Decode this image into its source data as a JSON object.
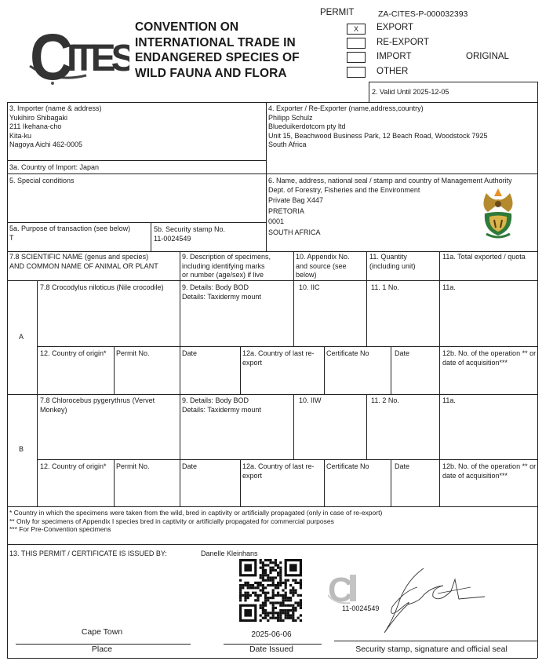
{
  "header": {
    "logo_text": "CITES",
    "title_lines": [
      "CONVENTION ON",
      "INTERNATIONAL TRADE IN",
      "ENDANGERED SPECIES OF",
      "WILD FAUNA AND FLORA"
    ],
    "permit_label": "PERMIT",
    "permit_number": "ZA-CITES-P-000032393",
    "types": [
      {
        "label": "EXPORT",
        "mark": "X"
      },
      {
        "label": "RE-EXPORT",
        "mark": ""
      },
      {
        "label": "IMPORT",
        "mark": ""
      },
      {
        "label": "OTHER",
        "mark": ""
      }
    ],
    "copy_label": "ORIGINAL",
    "valid_until": "2. Valid Until 2025-12-05"
  },
  "importer": {
    "label": "3. Importer (name & address)",
    "lines": [
      "Yukihiro Shibagaki",
      "211 Ikehana-cho",
      "Kita-ku",
      "Nagoya Aichi 462-0005"
    ],
    "country": "3a. Country of Import: Japan"
  },
  "exporter": {
    "label": "4. Exporter / Re-Exporter (name,address,country)",
    "lines": [
      "Philipp Schulz",
      "Blueduikerdotcom pty ltd",
      "Unit 15, Beachwood Business Park, 12 Beach Road, Woodstock 7925",
      "South Africa"
    ]
  },
  "special_conditions": {
    "label": "5. Special conditions"
  },
  "purpose": {
    "label": "5a. Purpose of transaction (see below)",
    "value": "T"
  },
  "security_stamp": {
    "label": "5b. Security stamp No.",
    "value": "11-0024549"
  },
  "authority": {
    "label": "6. Name, address, national seal / stamp and country of Management Authority",
    "lines": [
      "Dept. of Forestry, Fisheries and the Environment",
      "Private Bag X447",
      "PRETORIA",
      "0001",
      "SOUTH AFRICA"
    ]
  },
  "species_header": {
    "name": [
      "7.8 SCIENTIFIC NAME (genus and species)",
      "AND COMMON NAME OF ANIMAL OR PLANT"
    ],
    "description": [
      "9. Description of specimens,",
      "including identifying marks",
      "or number (age/sex) if live"
    ],
    "appendix": [
      "10. Appendix No.",
      "and source (see",
      "below)"
    ],
    "quantity": [
      "11. Quantity",
      "(including unit)"
    ],
    "total": "11a. Total exported / quota"
  },
  "specimens": [
    {
      "letter": "A",
      "name": "7.8 Crocodylus niloticus (Nile crocodile)",
      "description": [
        "9. Details: Body BOD",
        "Details: Taxidermy mount"
      ],
      "appendix": "10. IIC",
      "quantity": "11. 1 No.",
      "total": "11a.",
      "origin": "12. Country of origin*",
      "permit_no": "Permit No.",
      "date1": "Date",
      "last_reexport": "12a. Country of last re-export",
      "certificate_no": "Certificate No",
      "date2": "Date",
      "operation": "12b. No. of the operation ** or date of acquisition***"
    },
    {
      "letter": "B",
      "name": "7.8 Chlorocebus pygerythrus (Vervet Monkey)",
      "description": [
        "9. Details: Body BOD",
        "Details: Taxidermy mount"
      ],
      "appendix": "10. IIW",
      "quantity": "11. 2 No.",
      "total": "11a.",
      "origin": "12. Country of origin*",
      "permit_no": "Permit No.",
      "date1": "Date",
      "last_reexport": "12a. Country of last re-export",
      "certificate_no": "Certificate No",
      "date2": "Date",
      "operation": "12b. No. of the operation ** or date of acquisition***"
    }
  ],
  "footnotes": [
    "* Country in which the specimens were taken from the wild, bred in captivity or artificially propagated (only in case of re-export)",
    "** Only for specimens of Appendix I species bred in captivity or artificially propagated for commercial purposes",
    "*** For Pre-Convention specimens"
  ],
  "issuance": {
    "label": "13. THIS PERMIT / CERTIFICATE IS ISSUED BY:",
    "issuer": "Danelle Kleinhans",
    "place_value": "Cape Town",
    "place_label": "Place",
    "date_value": "2025-06-06",
    "date_label": "Date Issued",
    "stamp_number": "11-0024549",
    "signature_label": "Security stamp, signature and official seal"
  }
}
